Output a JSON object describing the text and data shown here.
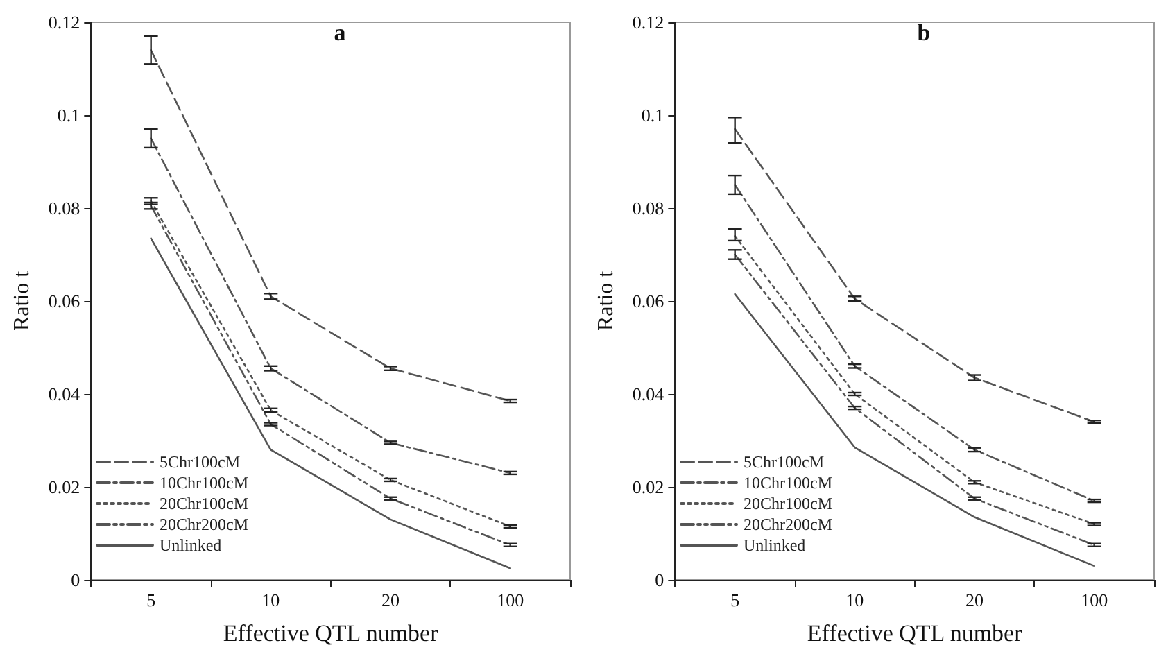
{
  "chart_data": [
    {
      "type": "line",
      "title": "a",
      "xlabel": "Effective QTL number",
      "ylabel": "Ratio t",
      "categories": [
        "5",
        "10",
        "20",
        "100"
      ],
      "ylim": [
        0,
        0.12
      ],
      "yticks": [
        0,
        0.02,
        0.04,
        0.06,
        0.08,
        0.1,
        0.12
      ],
      "grid": false,
      "legend": "bottom left",
      "marker": "none",
      "series": [
        {
          "name": "5Chr100cM",
          "color": "#555555",
          "line_style": "dashed",
          "values": [
            0.114,
            0.061,
            0.0455,
            0.0385
          ],
          "errors": [
            [
              0.111,
              0.117
            ],
            0.0006,
            0.0004,
            0.0003
          ]
        },
        {
          "name": "10Chr100cM",
          "color": "#555555",
          "line_style": "dashdot",
          "values": [
            0.095,
            0.0455,
            0.0295,
            0.023
          ],
          "errors": [
            [
              0.093,
              0.097
            ],
            0.0005,
            0.0003,
            0.0003
          ]
        },
        {
          "name": "20Chr100cM",
          "color": "#555555",
          "line_style": "dotted",
          "values": [
            0.0815,
            0.0365,
            0.0215,
            0.0115
          ],
          "errors": [
            0.0007,
            0.0004,
            0.0003,
            0.0003
          ]
        },
        {
          "name": "20Chr200cM",
          "color": "#555555",
          "line_style": "dashdotdot",
          "values": [
            0.0805,
            0.0335,
            0.0175,
            0.0075
          ],
          "errors": [
            0.0007,
            0.0003,
            0.0003,
            0.0003
          ]
        },
        {
          "name": "Unlinked",
          "color": "#555555",
          "line_style": "solid",
          "values": [
            0.0735,
            0.028,
            0.013,
            0.0025
          ]
        }
      ]
    },
    {
      "type": "line",
      "title": "b",
      "xlabel": "Effective QTL number",
      "ylabel": "Ratio t",
      "categories": [
        "5",
        "10",
        "20",
        "100"
      ],
      "ylim": [
        0,
        0.12
      ],
      "yticks": [
        0,
        0.02,
        0.04,
        0.06,
        0.08,
        0.1,
        0.12
      ],
      "grid": false,
      "legend": "bottom left",
      "marker": "none",
      "series": [
        {
          "name": "5Chr100cM",
          "color": "#555555",
          "line_style": "dashed",
          "values": [
            0.097,
            0.0605,
            0.0435,
            0.034
          ],
          "errors": [
            [
              0.094,
              0.0995
            ],
            0.0005,
            0.0006,
            0.0003
          ]
        },
        {
          "name": "10Chr100cM",
          "color": "#555555",
          "line_style": "dashdot",
          "values": [
            0.085,
            0.046,
            0.028,
            0.017
          ],
          "errors": [
            [
              0.083,
              0.087
            ],
            0.0004,
            0.0004,
            0.0003
          ]
        },
        {
          "name": "20Chr100cM",
          "color": "#555555",
          "line_style": "dotted",
          "values": [
            0.074,
            0.04,
            0.021,
            0.012
          ],
          "errors": [
            [
              0.073,
              0.0755
            ],
            0.0003,
            0.0003,
            0.0003
          ]
        },
        {
          "name": "20Chr200cM",
          "color": "#555555",
          "line_style": "dashdotdot",
          "values": [
            0.07,
            0.037,
            0.0175,
            0.0075
          ],
          "errors": [
            [
              0.069,
              0.071
            ],
            0.0003,
            0.0003,
            0.0003
          ]
        },
        {
          "name": "Unlinked",
          "color": "#555555",
          "line_style": "solid",
          "values": [
            0.0615,
            0.0285,
            0.0135,
            0.003
          ]
        }
      ]
    }
  ]
}
